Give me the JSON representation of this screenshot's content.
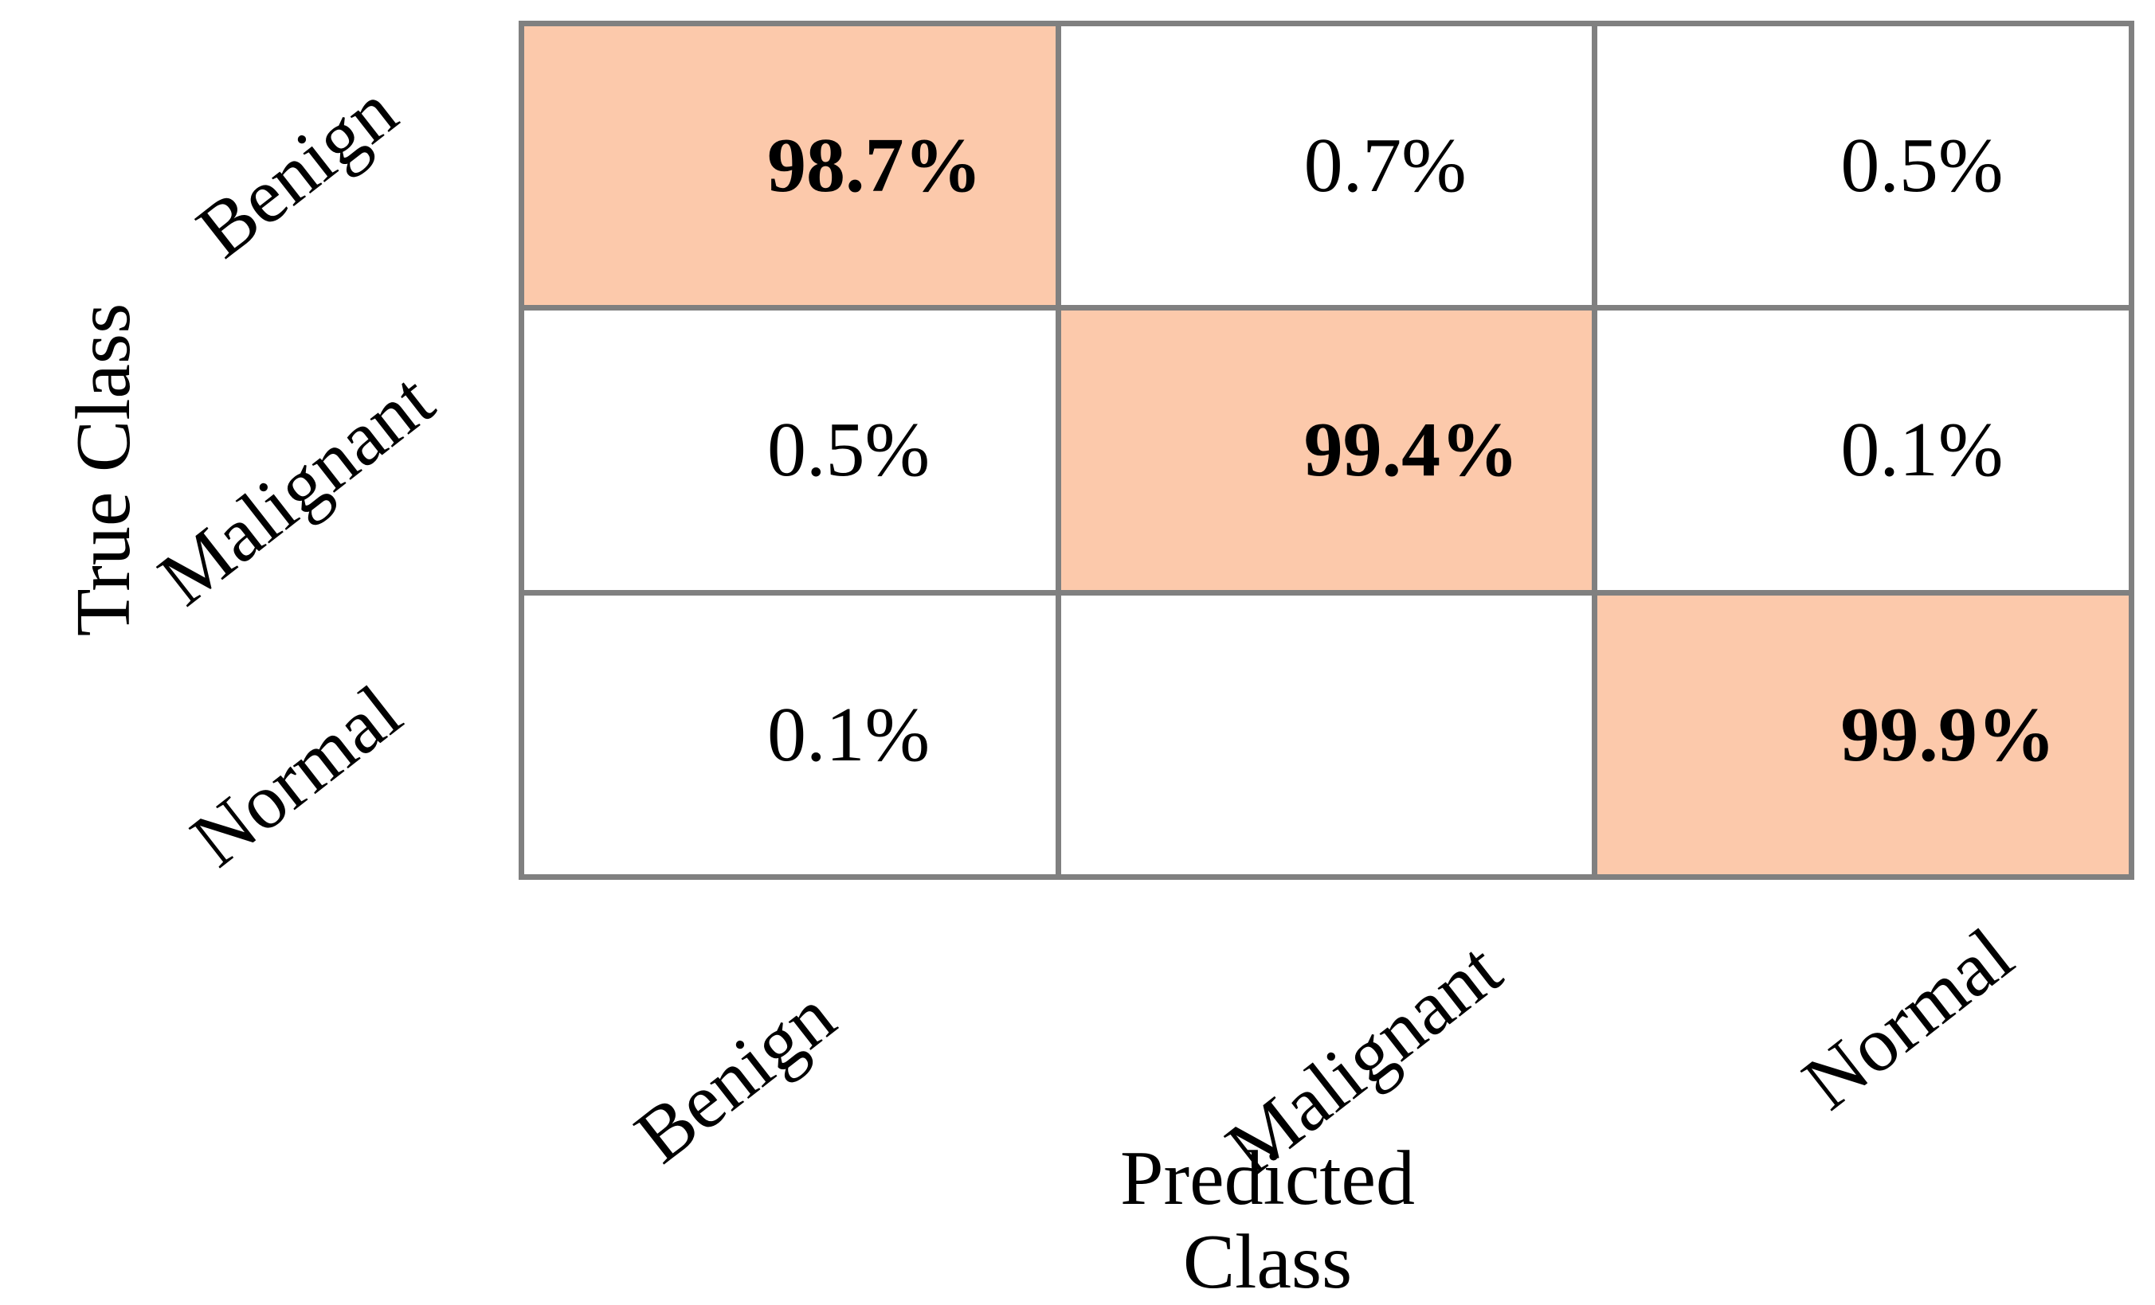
{
  "chart_data": {
    "type": "heatmap",
    "subtype": "confusion-matrix",
    "title": "",
    "xlabel": "Predicted Class",
    "ylabel": "True Class",
    "x_categories": [
      "Benign",
      "Malignant",
      "Normal"
    ],
    "y_categories": [
      "Benign",
      "Malignant",
      "Normal"
    ],
    "values_percent": [
      [
        98.7,
        0.7,
        0.5
      ],
      [
        0.5,
        99.4,
        0.1
      ],
      [
        0.1,
        null,
        99.9
      ]
    ],
    "display": [
      [
        "98.7%",
        "0.7%",
        "0.5%"
      ],
      [
        "0.5%",
        "99.4%",
        "0.1%"
      ],
      [
        "0.1%",
        "",
        "99.9%"
      ]
    ],
    "diagonal_bold": true,
    "legend": "none",
    "grid_on": true,
    "colors": {
      "diagonal_fill": "#FCC9AB",
      "offdiagonal_fill": "#FFFFFF",
      "grid_line": "#808080",
      "text": "#000000"
    }
  },
  "axes": {
    "y_title": "True Class",
    "x_title_line1": "Predicted",
    "x_title_line2": "Class",
    "y_ticks": [
      "Benign",
      "Malignant",
      "Normal"
    ],
    "x_ticks": [
      "Benign",
      "Malignant",
      "Normal"
    ]
  }
}
